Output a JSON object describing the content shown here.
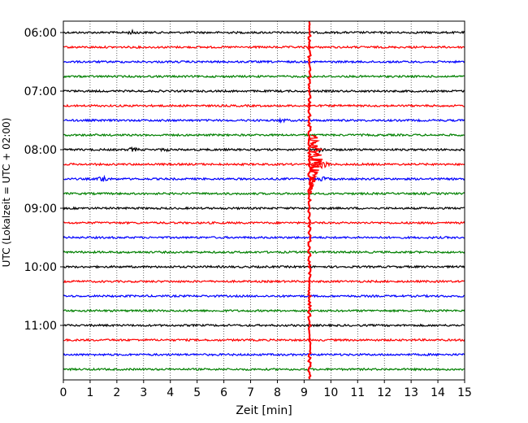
{
  "chart_data": {
    "type": "line",
    "title": "",
    "xlabel": "Zeit  [min]",
    "ylabel": "UTC (Lokalzeit = UTC + 02:00)",
    "xlim": [
      0,
      15
    ],
    "x_ticks": [
      "0",
      "1",
      "2",
      "3",
      "4",
      "5",
      "6",
      "7",
      "8",
      "9",
      "10",
      "11",
      "12",
      "13",
      "14",
      "15"
    ],
    "y_ticks": [
      "06:00",
      "07:00",
      "08:00",
      "09:00",
      "10:00",
      "11:00"
    ],
    "grid": "vertical dotted lines at each minute",
    "line_colors": [
      "#000000",
      "#ff0000",
      "#0000ff",
      "#008000"
    ],
    "trace_start_times": [
      "06:00",
      "06:15",
      "06:30",
      "06:45",
      "07:00",
      "07:15",
      "07:30",
      "07:45",
      "08:00",
      "08:15",
      "08:30",
      "08:45",
      "09:00",
      "09:15",
      "09:30",
      "09:45",
      "10:00",
      "10:15",
      "10:30",
      "10:45",
      "11:00",
      "11:15",
      "11:30",
      "11:45"
    ],
    "events": [
      {
        "trace": "06:00",
        "at_min": 2.6,
        "amplitude": 0.25
      },
      {
        "trace": "08:00",
        "at_min": 2.6,
        "amplitude": 0.3
      },
      {
        "trace": "08:00",
        "at_min": 3.8,
        "amplitude": 0.15
      },
      {
        "trace": "08:30",
        "at_min": 1.5,
        "amplitude": 0.6
      },
      {
        "trace": "07:30",
        "at_min": 8.2,
        "amplitude": 0.25
      }
    ],
    "major_event": {
      "at_min": 9.2,
      "description_trace_span": [
        "06:00",
        "11:45"
      ],
      "peak_trace": "08:15",
      "color": "#ff0000"
    }
  }
}
